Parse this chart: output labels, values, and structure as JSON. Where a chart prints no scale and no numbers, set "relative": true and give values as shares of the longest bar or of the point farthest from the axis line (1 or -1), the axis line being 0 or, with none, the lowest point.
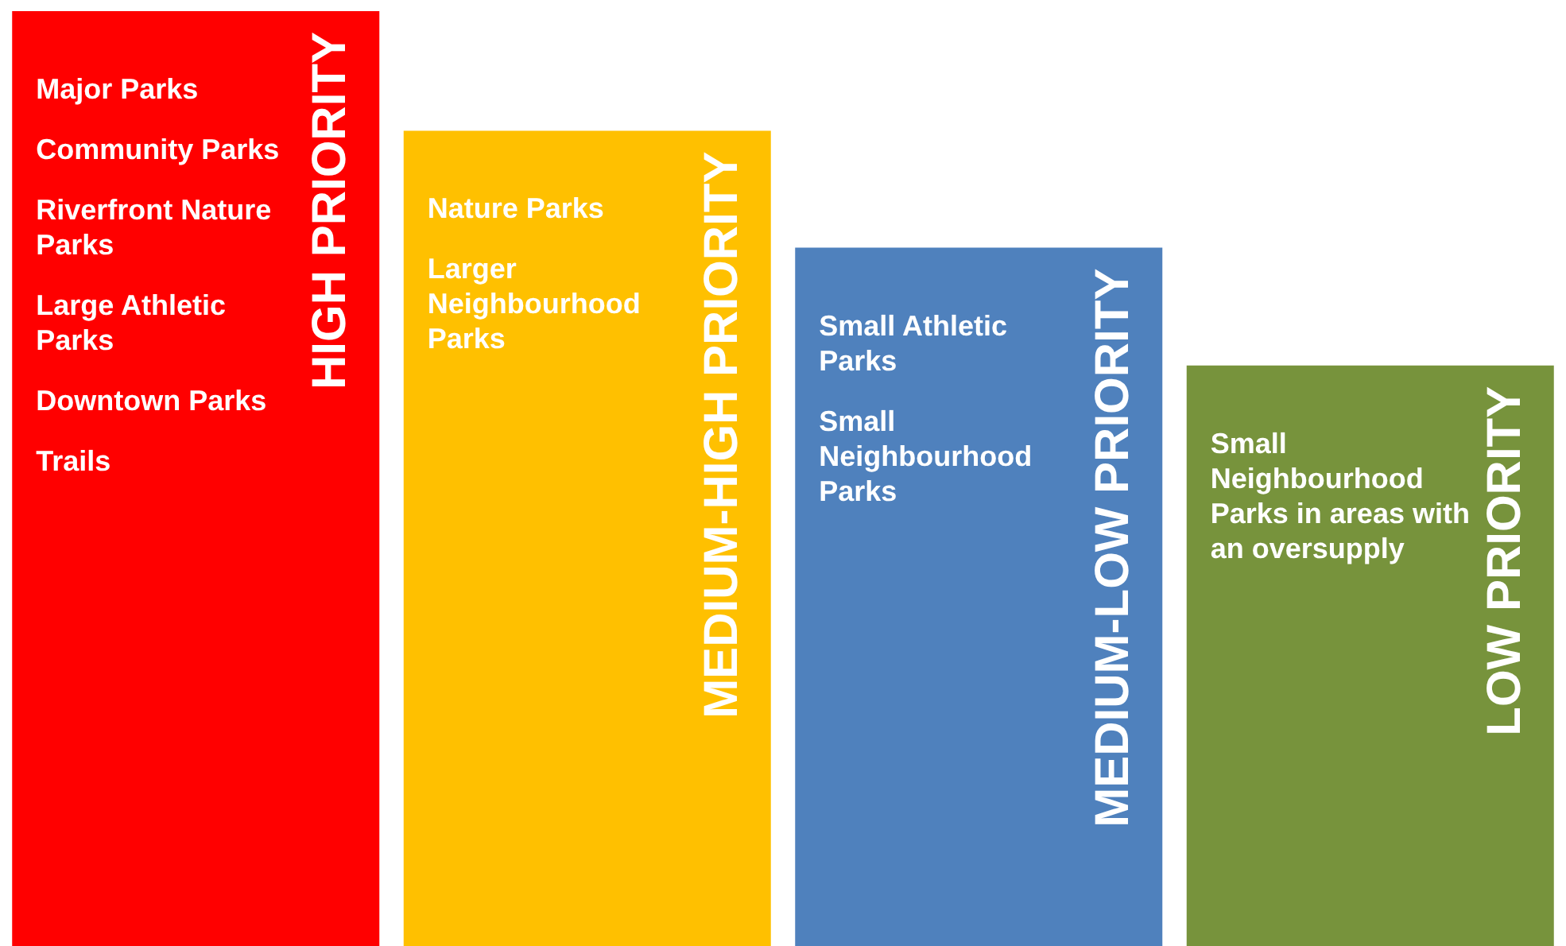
{
  "chart_data": {
    "type": "bar",
    "relative": true,
    "categories": [
      "HIGH PRIORITY",
      "MEDIUM-HIGH PRIORITY",
      "MEDIUM-LOW PRIORITY",
      "LOW PRIORITY"
    ],
    "values": [
      1,
      0.872,
      0.747,
      0.621
    ],
    "colors": [
      "#ff0000",
      "#ffc000",
      "#4f81bd",
      "#77933c"
    ],
    "annotations": [
      "Major Parks\nCommunity Parks\nRiverfront Nature Parks\nLarge Athletic Parks\nDowntown Parks\nTrails",
      "Nature Parks\nLarger Neighbourhood Parks",
      "Small Athletic Parks\nSmall Neighbourhood Parks",
      "Small Neighbourhood Parks in areas with an oversupply"
    ]
  }
}
